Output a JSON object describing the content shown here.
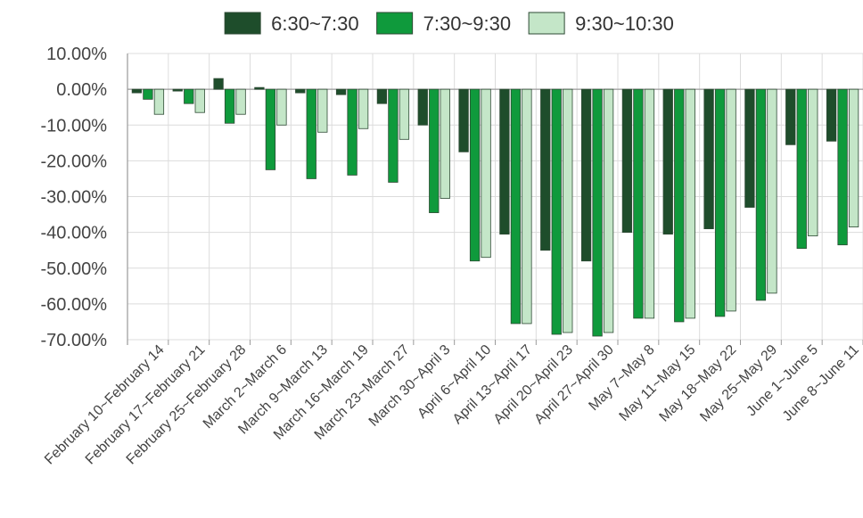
{
  "chart_data": {
    "type": "bar",
    "categories": [
      "February 10~February 14",
      "February 17~February 21",
      "February 25~February 28",
      "March 2~March 6",
      "March 9~March 13",
      "March 16~March 19",
      "March 23~March 27",
      "March 30~April 3",
      "April 6~April 10",
      "April 13~April 17",
      "April 20~April 23",
      "April 27~April 30",
      "May 7~May 8",
      "May 11~May 15",
      "May 18~May 22",
      "May 25~May 29",
      "June 1~June 5",
      "June 8~June 11"
    ],
    "series": [
      {
        "name": "6:30~7:30",
        "color": "#1e4d2b",
        "values": [
          -1.0,
          -0.5,
          3.0,
          0.5,
          -1.0,
          -1.5,
          -4.0,
          -10.0,
          -17.5,
          -40.5,
          -45.0,
          -48.0,
          -40.0,
          -40.5,
          -39.0,
          -33.0,
          -15.5,
          -14.5
        ]
      },
      {
        "name": "7:30~9:30",
        "color": "#0f9a3c",
        "values": [
          -2.8,
          -4.0,
          -9.5,
          -22.5,
          -25.0,
          -24.0,
          -26.0,
          -34.5,
          -48.0,
          -65.5,
          -68.5,
          -69.0,
          -64.0,
          -65.0,
          -63.5,
          -59.0,
          -44.5,
          -43.5
        ]
      },
      {
        "name": "9:30~10:30",
        "color": "#c4e6c8",
        "values": [
          -7.0,
          -6.5,
          -7.0,
          -10.0,
          -12.0,
          -11.0,
          -14.0,
          -30.5,
          -47.0,
          -65.5,
          -68.0,
          -68.0,
          -64.0,
          -64.0,
          -62.0,
          -57.0,
          -41.0,
          -38.5
        ]
      }
    ],
    "yticks": [
      "10.00%",
      "0.00%",
      "-10.00%",
      "-20.00%",
      "-30.00%",
      "-40.00%",
      "-50.00%",
      "-60.00%",
      "-70.00%"
    ],
    "ylim": [
      -70,
      10
    ],
    "title": "",
    "xlabel": "",
    "ylabel": "",
    "grid": true,
    "legend_position": "top-center"
  }
}
